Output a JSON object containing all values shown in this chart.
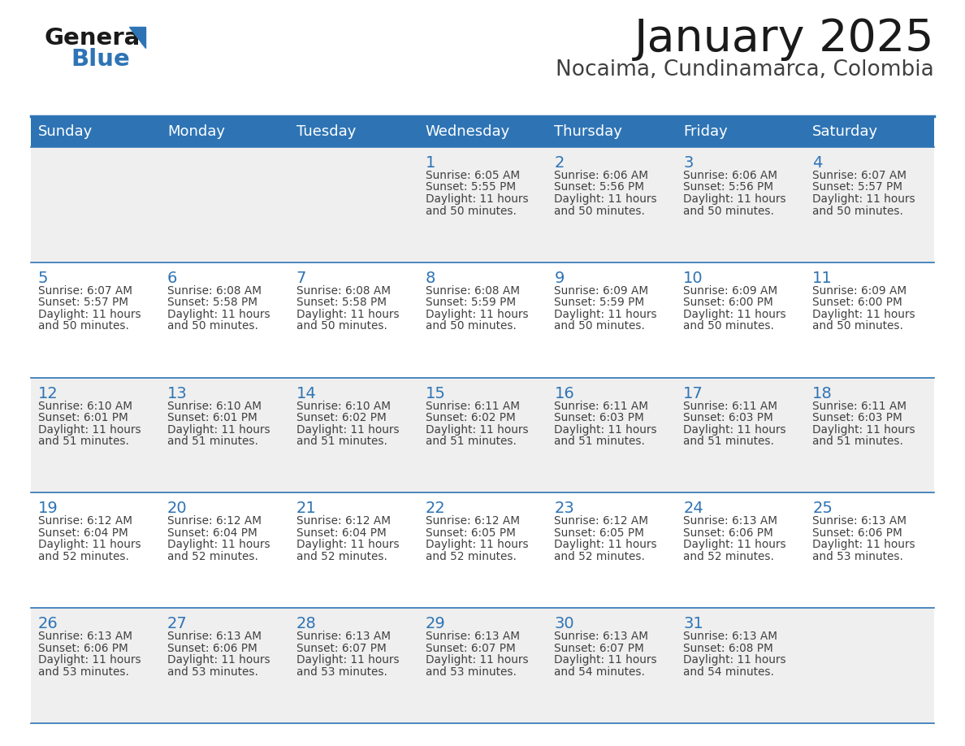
{
  "title": "January 2025",
  "subtitle": "Nocaima, Cundinamarca, Colombia",
  "header_bg_color": "#2E74B5",
  "header_text_color": "#FFFFFF",
  "weekdays": [
    "Sunday",
    "Monday",
    "Tuesday",
    "Wednesday",
    "Thursday",
    "Friday",
    "Saturday"
  ],
  "row_bg_colors": [
    "#EFEFEF",
    "#FFFFFF"
  ],
  "cell_border_color": "#2E74B5",
  "day_number_color": "#2E74B5",
  "info_text_color": "#404040",
  "logo_general_color": "#1A1A1A",
  "logo_blue_color": "#2E74B5",
  "title_color": "#1A1A1A",
  "subtitle_color": "#404040",
  "calendar": [
    [
      {
        "day": null,
        "sunrise": null,
        "sunset": null,
        "daylight_line1": null,
        "daylight_line2": null
      },
      {
        "day": null,
        "sunrise": null,
        "sunset": null,
        "daylight_line1": null,
        "daylight_line2": null
      },
      {
        "day": null,
        "sunrise": null,
        "sunset": null,
        "daylight_line1": null,
        "daylight_line2": null
      },
      {
        "day": 1,
        "sunrise": "6:05 AM",
        "sunset": "5:55 PM",
        "daylight_line1": "11 hours",
        "daylight_line2": "and 50 minutes."
      },
      {
        "day": 2,
        "sunrise": "6:06 AM",
        "sunset": "5:56 PM",
        "daylight_line1": "11 hours",
        "daylight_line2": "and 50 minutes."
      },
      {
        "day": 3,
        "sunrise": "6:06 AM",
        "sunset": "5:56 PM",
        "daylight_line1": "11 hours",
        "daylight_line2": "and 50 minutes."
      },
      {
        "day": 4,
        "sunrise": "6:07 AM",
        "sunset": "5:57 PM",
        "daylight_line1": "11 hours",
        "daylight_line2": "and 50 minutes."
      }
    ],
    [
      {
        "day": 5,
        "sunrise": "6:07 AM",
        "sunset": "5:57 PM",
        "daylight_line1": "11 hours",
        "daylight_line2": "and 50 minutes."
      },
      {
        "day": 6,
        "sunrise": "6:08 AM",
        "sunset": "5:58 PM",
        "daylight_line1": "11 hours",
        "daylight_line2": "and 50 minutes."
      },
      {
        "day": 7,
        "sunrise": "6:08 AM",
        "sunset": "5:58 PM",
        "daylight_line1": "11 hours",
        "daylight_line2": "and 50 minutes."
      },
      {
        "day": 8,
        "sunrise": "6:08 AM",
        "sunset": "5:59 PM",
        "daylight_line1": "11 hours",
        "daylight_line2": "and 50 minutes."
      },
      {
        "day": 9,
        "sunrise": "6:09 AM",
        "sunset": "5:59 PM",
        "daylight_line1": "11 hours",
        "daylight_line2": "and 50 minutes."
      },
      {
        "day": 10,
        "sunrise": "6:09 AM",
        "sunset": "6:00 PM",
        "daylight_line1": "11 hours",
        "daylight_line2": "and 50 minutes."
      },
      {
        "day": 11,
        "sunrise": "6:09 AM",
        "sunset": "6:00 PM",
        "daylight_line1": "11 hours",
        "daylight_line2": "and 50 minutes."
      }
    ],
    [
      {
        "day": 12,
        "sunrise": "6:10 AM",
        "sunset": "6:01 PM",
        "daylight_line1": "11 hours",
        "daylight_line2": "and 51 minutes."
      },
      {
        "day": 13,
        "sunrise": "6:10 AM",
        "sunset": "6:01 PM",
        "daylight_line1": "11 hours",
        "daylight_line2": "and 51 minutes."
      },
      {
        "day": 14,
        "sunrise": "6:10 AM",
        "sunset": "6:02 PM",
        "daylight_line1": "11 hours",
        "daylight_line2": "and 51 minutes."
      },
      {
        "day": 15,
        "sunrise": "6:11 AM",
        "sunset": "6:02 PM",
        "daylight_line1": "11 hours",
        "daylight_line2": "and 51 minutes."
      },
      {
        "day": 16,
        "sunrise": "6:11 AM",
        "sunset": "6:03 PM",
        "daylight_line1": "11 hours",
        "daylight_line2": "and 51 minutes."
      },
      {
        "day": 17,
        "sunrise": "6:11 AM",
        "sunset": "6:03 PM",
        "daylight_line1": "11 hours",
        "daylight_line2": "and 51 minutes."
      },
      {
        "day": 18,
        "sunrise": "6:11 AM",
        "sunset": "6:03 PM",
        "daylight_line1": "11 hours",
        "daylight_line2": "and 51 minutes."
      }
    ],
    [
      {
        "day": 19,
        "sunrise": "6:12 AM",
        "sunset": "6:04 PM",
        "daylight_line1": "11 hours",
        "daylight_line2": "and 52 minutes."
      },
      {
        "day": 20,
        "sunrise": "6:12 AM",
        "sunset": "6:04 PM",
        "daylight_line1": "11 hours",
        "daylight_line2": "and 52 minutes."
      },
      {
        "day": 21,
        "sunrise": "6:12 AM",
        "sunset": "6:04 PM",
        "daylight_line1": "11 hours",
        "daylight_line2": "and 52 minutes."
      },
      {
        "day": 22,
        "sunrise": "6:12 AM",
        "sunset": "6:05 PM",
        "daylight_line1": "11 hours",
        "daylight_line2": "and 52 minutes."
      },
      {
        "day": 23,
        "sunrise": "6:12 AM",
        "sunset": "6:05 PM",
        "daylight_line1": "11 hours",
        "daylight_line2": "and 52 minutes."
      },
      {
        "day": 24,
        "sunrise": "6:13 AM",
        "sunset": "6:06 PM",
        "daylight_line1": "11 hours",
        "daylight_line2": "and 52 minutes."
      },
      {
        "day": 25,
        "sunrise": "6:13 AM",
        "sunset": "6:06 PM",
        "daylight_line1": "11 hours",
        "daylight_line2": "and 53 minutes."
      }
    ],
    [
      {
        "day": 26,
        "sunrise": "6:13 AM",
        "sunset": "6:06 PM",
        "daylight_line1": "11 hours",
        "daylight_line2": "and 53 minutes."
      },
      {
        "day": 27,
        "sunrise": "6:13 AM",
        "sunset": "6:06 PM",
        "daylight_line1": "11 hours",
        "daylight_line2": "and 53 minutes."
      },
      {
        "day": 28,
        "sunrise": "6:13 AM",
        "sunset": "6:07 PM",
        "daylight_line1": "11 hours",
        "daylight_line2": "and 53 minutes."
      },
      {
        "day": 29,
        "sunrise": "6:13 AM",
        "sunset": "6:07 PM",
        "daylight_line1": "11 hours",
        "daylight_line2": "and 53 minutes."
      },
      {
        "day": 30,
        "sunrise": "6:13 AM",
        "sunset": "6:07 PM",
        "daylight_line1": "11 hours",
        "daylight_line2": "and 54 minutes."
      },
      {
        "day": 31,
        "sunrise": "6:13 AM",
        "sunset": "6:08 PM",
        "daylight_line1": "11 hours",
        "daylight_line2": "and 54 minutes."
      },
      {
        "day": null,
        "sunrise": null,
        "sunset": null,
        "daylight_line1": null,
        "daylight_line2": null
      }
    ]
  ]
}
